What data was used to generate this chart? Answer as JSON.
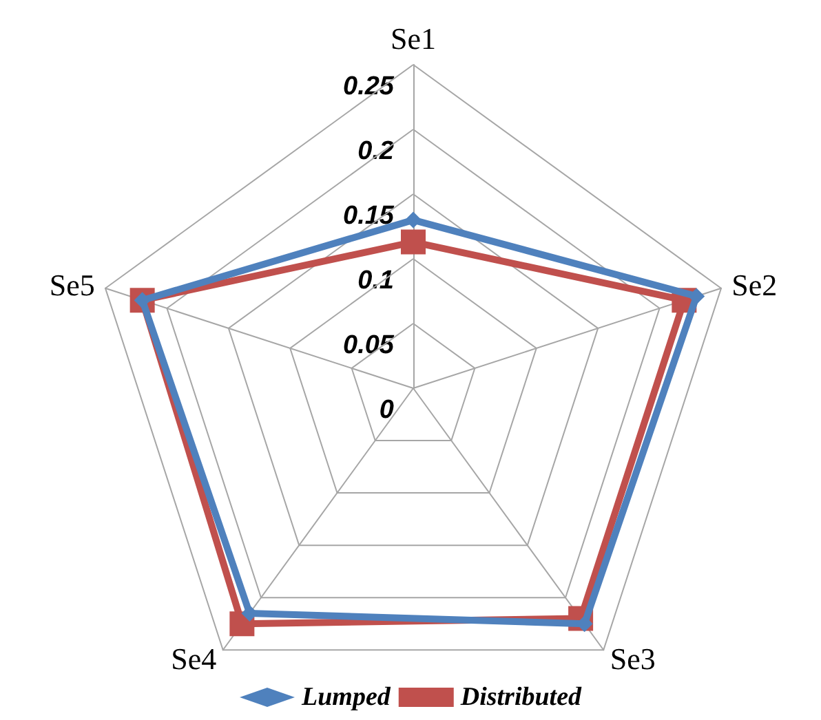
{
  "chart_data": {
    "type": "radar",
    "categories": [
      "Se1",
      "Se2",
      "Se3",
      "Se4",
      "Se5"
    ],
    "series": [
      {
        "name": "Lumped",
        "color": "#4f81bd",
        "marker": "diamond",
        "values": [
          0.13,
          0.23,
          0.225,
          0.215,
          0.22
        ]
      },
      {
        "name": "Distributed",
        "color": "#c0504d",
        "marker": "square",
        "values": [
          0.113,
          0.22,
          0.22,
          0.225,
          0.22
        ]
      }
    ],
    "ylim": [
      0,
      0.25
    ],
    "yticks": [
      0,
      0.05,
      0.1,
      0.15,
      0.2,
      0.25
    ],
    "grid": true,
    "legend": "bottom"
  }
}
